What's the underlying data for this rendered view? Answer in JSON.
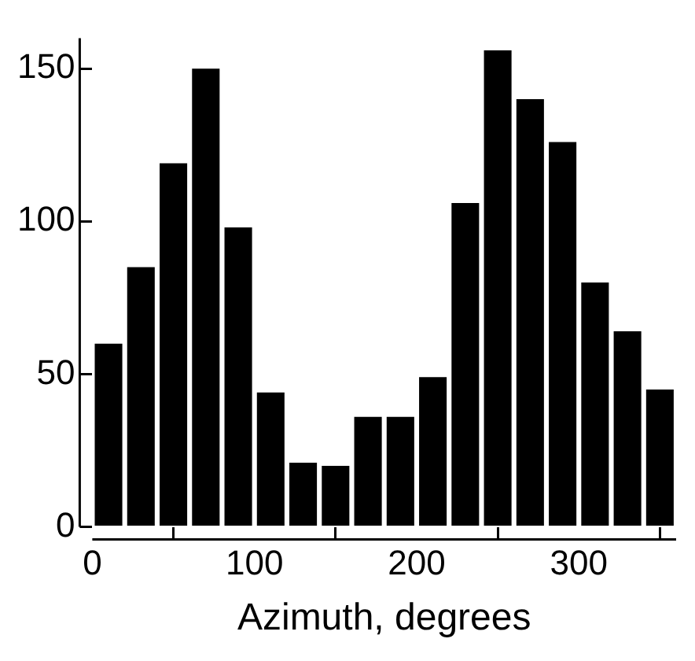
{
  "chart_data": {
    "type": "histogram",
    "xlabel": "Azimuth, degrees",
    "bins": [
      0,
      20,
      40,
      60,
      80,
      100,
      120,
      140,
      160,
      180,
      200,
      220,
      240,
      260,
      280,
      300,
      320,
      340,
      360
    ],
    "values": [
      60,
      85,
      119,
      150,
      98,
      44,
      21,
      20,
      36,
      36,
      49,
      106,
      156,
      140,
      126,
      80,
      64,
      45
    ],
    "color": "#000000",
    "xlim": [
      0,
      360
    ],
    "xticks": [
      0,
      100,
      200,
      300
    ],
    "ylim": [
      0,
      160
    ],
    "yticks": [
      0,
      50,
      100,
      150
    ],
    "grid": false
  }
}
